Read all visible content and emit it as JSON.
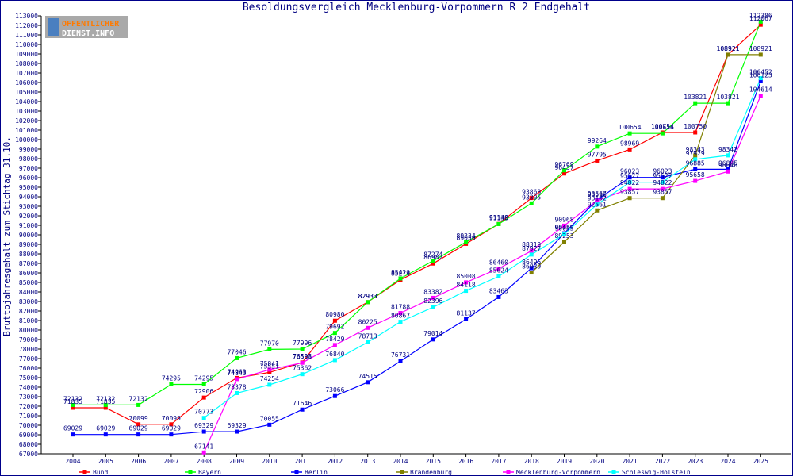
{
  "chart_data": {
    "type": "line",
    "title": "Besoldungsvergleich Mecklenburg-Vorpommern R 2 Endgehalt",
    "ylabel": "Bruttojahresgehalt zum Stichtag 31.10.",
    "xlabel": "",
    "ylim": [
      67000,
      113000
    ],
    "ytick_step": 1000,
    "grid": false,
    "legend_position": "bottom",
    "x": [
      "2004",
      "2005",
      "2006",
      "2007",
      "2008",
      "2009",
      "2010",
      "2011",
      "2012",
      "2013",
      "2014",
      "2015",
      "2016",
      "2017",
      "2018",
      "2019",
      "2020",
      "2021",
      "2022",
      "2023",
      "2024",
      "2025"
    ],
    "series": [
      {
        "name": "Bund",
        "color": "#ff0000",
        "values": [
          71835,
          71835,
          70099,
          70099,
          72906,
          74963,
          75551,
          76598,
          80980,
          82933,
          85274,
          86982,
          89050,
          91148,
          93868,
          96437,
          97795,
          98969,
          100754,
          100750,
          108921,
          112067
        ]
      },
      {
        "name": "Bayern",
        "color": "#00ff00",
        "values": [
          72132,
          72132,
          72132,
          74295,
          74295,
          77046,
          77970,
          77996,
          79692,
          82933,
          85420,
          87274,
          89234,
          91130,
          93305,
          96769,
          99264,
          100654,
          100654,
          103821,
          103821,
          112386
        ]
      },
      {
        "name": "Berlin",
        "color": "#0000ff",
        "values": [
          69029,
          69029,
          69029,
          69029,
          69329,
          69329,
          70055,
          71646,
          73066,
          74515,
          76731,
          79014,
          81137,
          83463,
          86496,
          90159,
          93667,
          96023,
          96023,
          96885,
          96885,
          106123
        ]
      },
      {
        "name": "Brandenburg",
        "color": "#808000",
        "values": [
          null,
          null,
          null,
          null,
          null,
          null,
          null,
          null,
          null,
          null,
          null,
          null,
          null,
          null,
          86039,
          89253,
          92561,
          93857,
          93857,
          98343,
          108921,
          108921
        ]
      },
      {
        "name": "Mecklenburg-Vorpommern",
        "color": "#ff00ff",
        "values": [
          null,
          null,
          null,
          null,
          67141,
          74843,
          75841,
          76561,
          78429,
          80225,
          81788,
          83382,
          85008,
          86460,
          88319,
          90968,
          93596,
          94822,
          94822,
          95658,
          96646,
          104614
        ]
      },
      {
        "name": "Schleswig-Holstein",
        "color": "#00ffff",
        "values": [
          null,
          null,
          null,
          null,
          70773,
          73378,
          74254,
          75362,
          76840,
          78713,
          80867,
          82396,
          84118,
          85624,
          87927,
          90055,
          93192,
          95527,
          95527,
          97929,
          98342,
          106452
        ]
      }
    ],
    "data_labels": [
      {
        "series": 0,
        "values": [
          71835,
          71835,
          70099,
          70099,
          72906,
          74963,
          75551,
          76598,
          80980,
          82933,
          85274,
          86982,
          89050,
          91148,
          93868,
          96437,
          97795,
          98969,
          100754,
          100750,
          108921,
          112067
        ]
      },
      {
        "series": 1,
        "values": [
          72132,
          72132,
          72132,
          74295,
          74295,
          77046,
          77970,
          77996,
          79692,
          82933,
          85420,
          87274,
          89234,
          91130,
          93305,
          96769,
          99264,
          100654,
          100654,
          103821,
          103821,
          112386
        ]
      },
      {
        "series": 2,
        "values": [
          69029,
          69029,
          69029,
          69029,
          69329,
          69329,
          70055,
          71646,
          73066,
          74515,
          76731,
          79014,
          81137,
          83463,
          86496,
          90159,
          93667,
          96023,
          96023,
          96885,
          96885,
          106123
        ]
      },
      {
        "series": 3,
        "values": [
          null,
          null,
          null,
          null,
          null,
          null,
          null,
          null,
          null,
          null,
          null,
          null,
          null,
          null,
          86039,
          89253,
          92561,
          93857,
          93857,
          98343,
          108921,
          108921
        ]
      },
      {
        "series": 4,
        "values": [
          null,
          null,
          null,
          null,
          67141,
          74843,
          75841,
          76561,
          78429,
          80225,
          81788,
          83382,
          85008,
          86460,
          88319,
          90968,
          93596,
          94822,
          94822,
          95658,
          96646,
          104614
        ]
      },
      {
        "series": 5,
        "values": [
          null,
          null,
          null,
          null,
          70773,
          73378,
          74254,
          75362,
          76840,
          78713,
          80867,
          82396,
          84118,
          85624,
          87927,
          90055,
          93192,
          95527,
          95527,
          97929,
          98342,
          106452
        ]
      }
    ]
  },
  "logo": {
    "line1": "OFFENTLICHER",
    "line2": "DIENST.INFO",
    "colors": {
      "bg": "#a9a9a9",
      "text": "#ff7a00",
      "text2": "#ffffff",
      "mark": "#4a7fc0"
    }
  },
  "frame_color": "#00008b",
  "axis_color": "#000000",
  "text_color": "#000080"
}
